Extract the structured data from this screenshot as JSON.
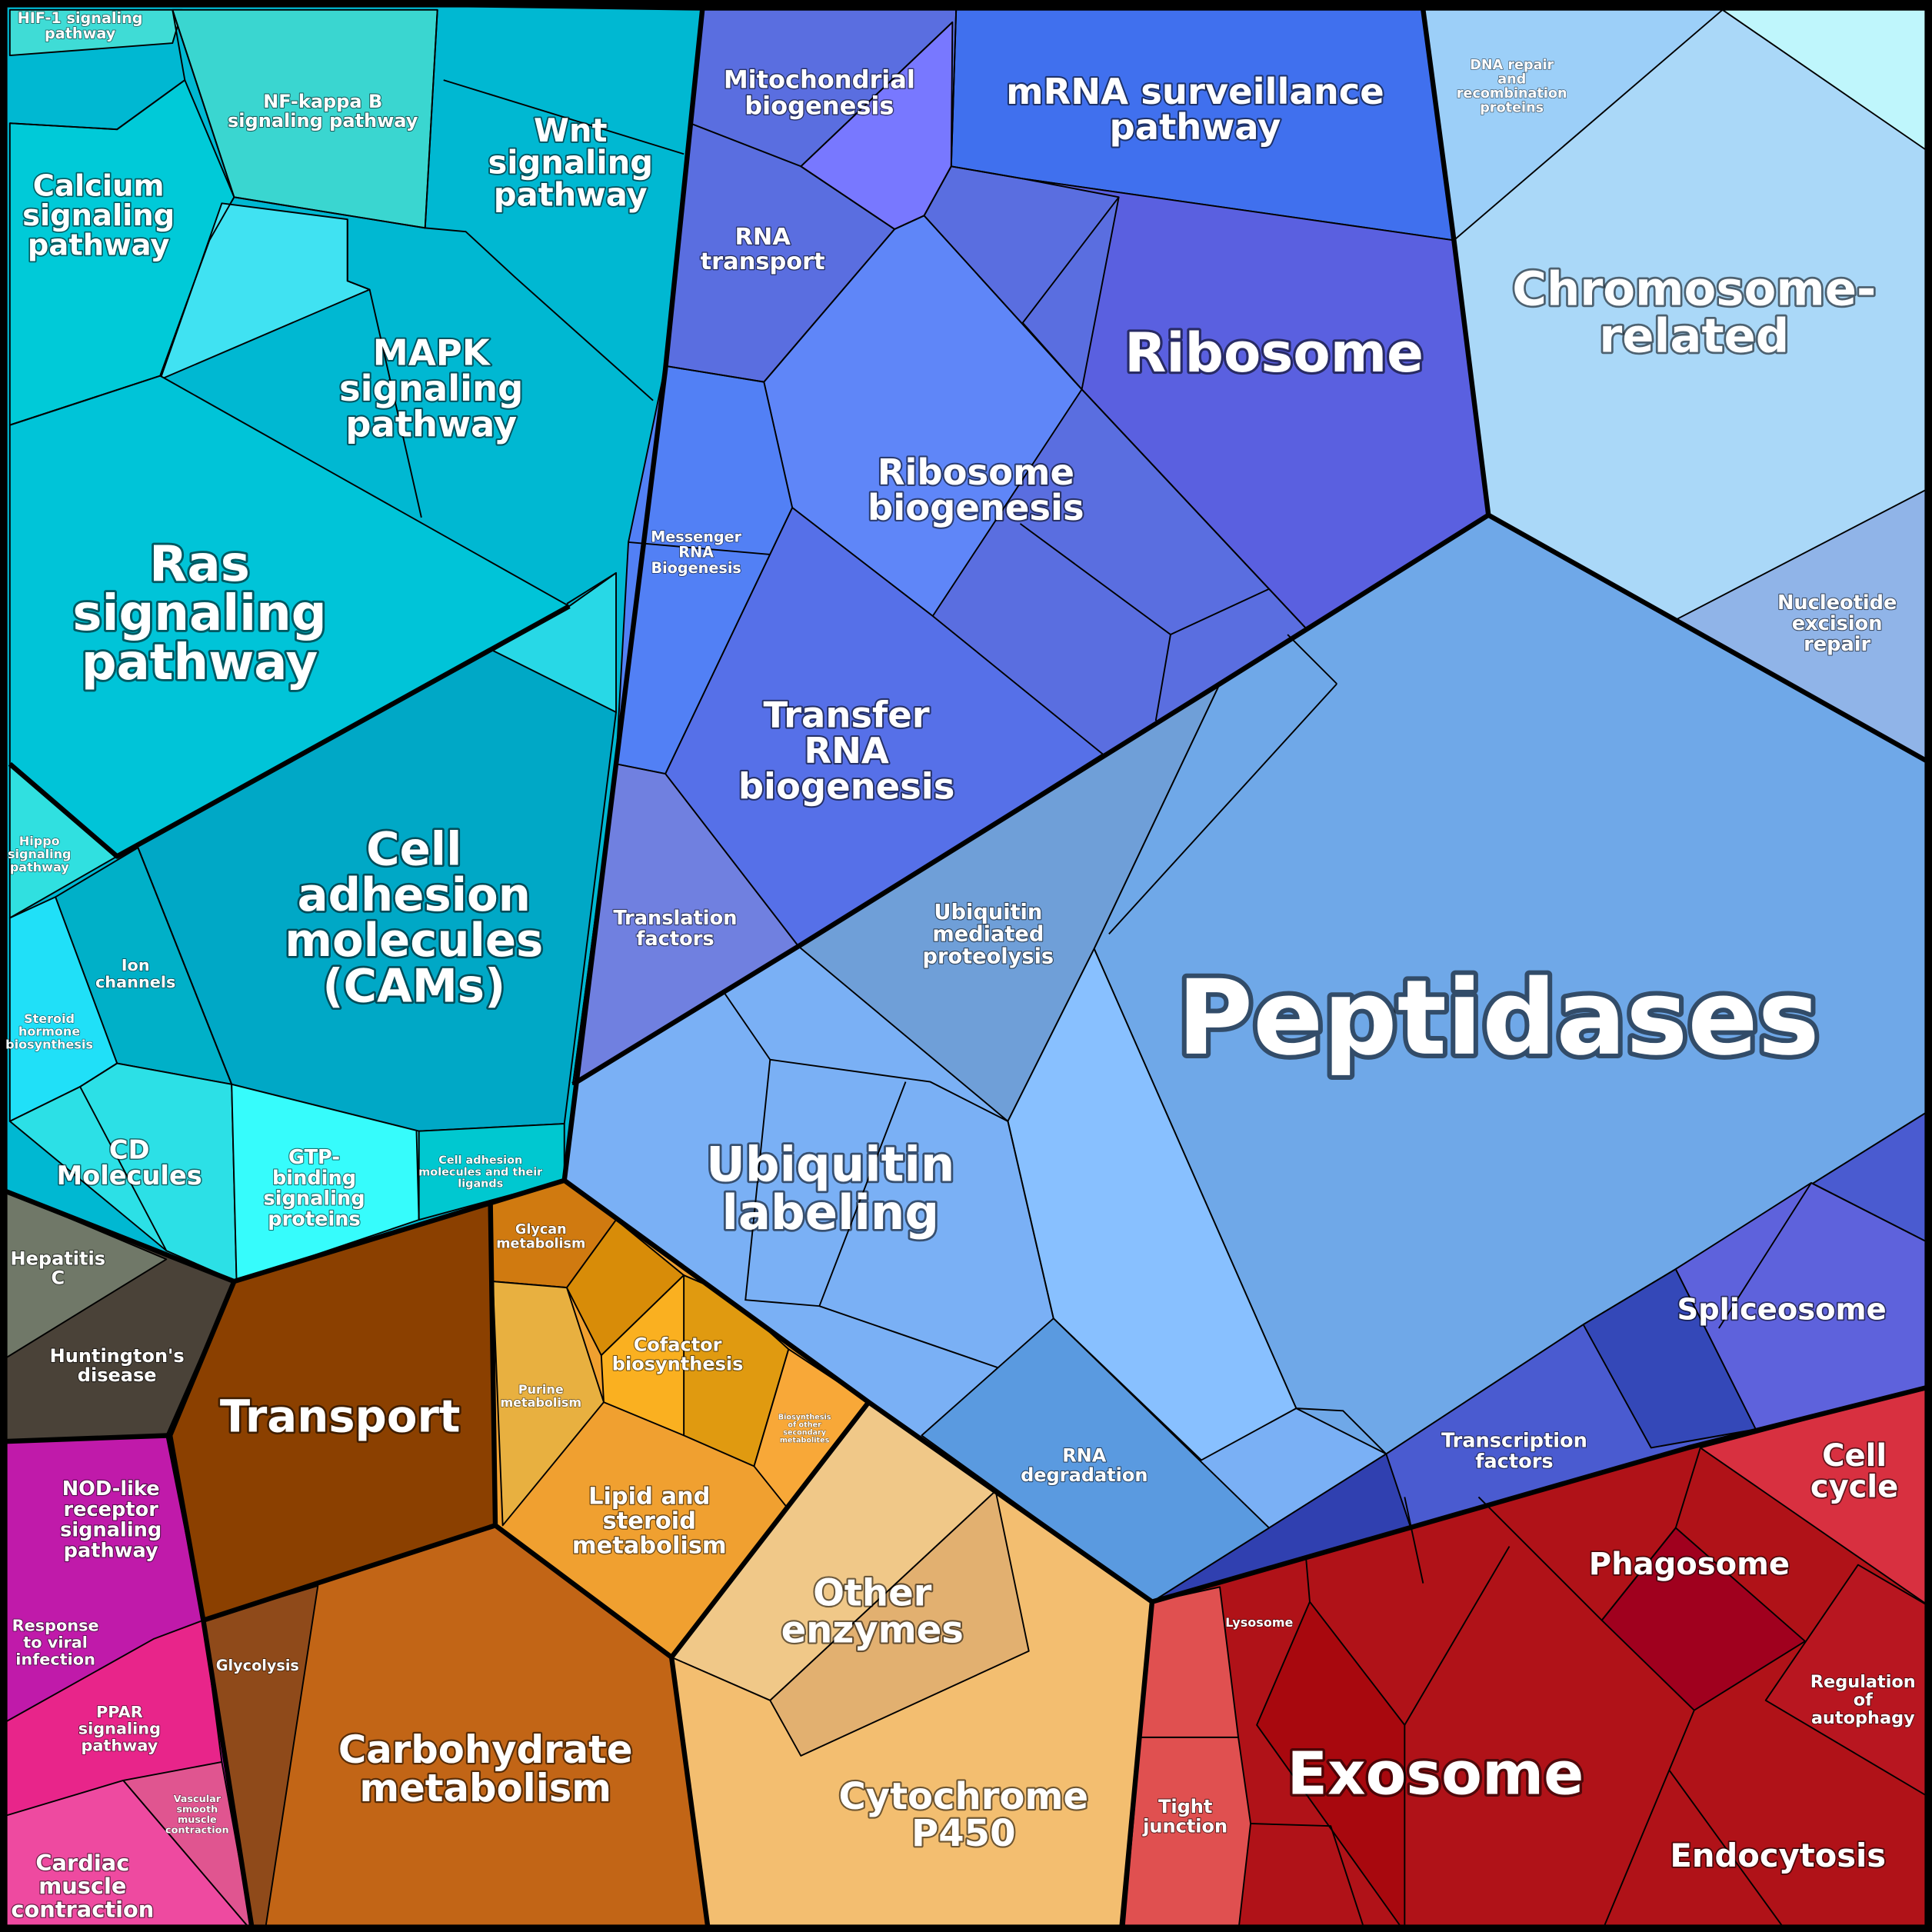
{
  "cells": [
    {
      "lines": [
        "HIF-1 signaling",
        "pathway"
      ]
    },
    {
      "lines": [
        "NF-kappa B",
        "signaling pathway"
      ]
    },
    {
      "lines": [
        "Wnt",
        "signaling",
        "pathway"
      ]
    },
    {
      "lines": [
        "Calcium",
        "signaling",
        "pathway"
      ]
    },
    {
      "lines": [
        "MAPK",
        "signaling",
        "pathway"
      ]
    },
    {
      "lines": [
        "Ras",
        "signaling",
        "pathway"
      ]
    },
    {
      "lines": [
        "Cell",
        "adhesion",
        "molecules",
        "(CAMs)"
      ]
    },
    {
      "lines": [
        "Hippo",
        "signaling",
        "pathway"
      ]
    },
    {
      "lines": [
        "Ion",
        "channels"
      ]
    },
    {
      "lines": [
        "Steroid",
        "hormone",
        "biosynthesis"
      ]
    },
    {
      "lines": [
        "CD",
        "Molecules"
      ]
    },
    {
      "lines": [
        "GTP-",
        "binding",
        "signaling",
        "proteins"
      ]
    },
    {
      "lines": [
        "Cell adhesion",
        "molecules and their",
        "ligands"
      ]
    },
    {
      "lines": [
        "Hepatitis",
        "C"
      ]
    },
    {
      "lines": [
        "Huntington's",
        "disease"
      ]
    },
    {
      "lines": [
        "NOD-like",
        "receptor",
        "signaling",
        "pathway"
      ]
    },
    {
      "lines": [
        "Response",
        "to viral",
        "infection"
      ]
    },
    {
      "lines": [
        "PPAR",
        "signaling",
        "pathway"
      ]
    },
    {
      "lines": [
        "Vascular",
        "smooth",
        "muscle",
        "contraction"
      ]
    },
    {
      "lines": [
        "Cardiac",
        "muscle",
        "contraction"
      ]
    },
    {
      "lines": [
        "Transport"
      ]
    },
    {
      "lines": [
        "Glycolysis"
      ]
    },
    {
      "lines": [
        "Carbohydrate",
        "metabolism"
      ]
    },
    {
      "lines": [
        "Glycan",
        "metabolism"
      ]
    },
    {
      "lines": [
        "Purine",
        "metabolism"
      ]
    },
    {
      "lines": [
        "Cofactor",
        "biosynthesis"
      ]
    },
    {
      "lines": [
        "Biosynthesis",
        "of other",
        "secondary",
        "metabolites"
      ]
    },
    {
      "lines": [
        "Lipid and",
        "steroid",
        "metabolism"
      ]
    },
    {
      "lines": [
        "Other",
        "enzymes"
      ]
    },
    {
      "lines": [
        "Cytochrome",
        "P450"
      ]
    },
    {
      "lines": [
        "Mitochondrial",
        "biogenesis"
      ]
    },
    {
      "lines": [
        "mRNA surveillance",
        "pathway"
      ]
    },
    {
      "lines": [
        "RNA",
        "transport"
      ]
    },
    {
      "lines": [
        "Ribosome"
      ]
    },
    {
      "lines": [
        "Ribosome",
        "biogenesis"
      ]
    },
    {
      "lines": [
        "Messenger",
        "RNA",
        "Biogenesis"
      ]
    },
    {
      "lines": [
        "Transfer",
        "RNA",
        "biogenesis"
      ]
    },
    {
      "lines": [
        "Translation",
        "factors"
      ]
    },
    {
      "lines": [
        "Ubiquitin",
        "mediated",
        "proteolysis"
      ]
    },
    {
      "lines": [
        "Ubiquitin",
        "labeling"
      ]
    },
    {
      "lines": [
        "Peptidases"
      ]
    },
    {
      "lines": [
        "RNA",
        "degradation"
      ]
    },
    {
      "lines": [
        "Chromosome-",
        "related"
      ]
    },
    {
      "lines": [
        "DNA repair",
        "and",
        "recombination",
        "proteins"
      ]
    },
    {
      "lines": [
        "Nucleotide",
        "excision",
        "repair"
      ]
    },
    {
      "lines": [
        "Spliceosome"
      ]
    },
    {
      "lines": [
        "Transcription",
        "factors"
      ]
    },
    {
      "lines": [
        "Cell",
        "cycle"
      ]
    },
    {
      "lines": [
        "Phagosome"
      ]
    },
    {
      "lines": [
        "Lysosome"
      ]
    },
    {
      "lines": [
        "Regulation",
        "of",
        "autophagy"
      ]
    },
    {
      "lines": [
        "Exosome"
      ]
    },
    {
      "lines": [
        "Tight",
        "junction"
      ]
    },
    {
      "lines": [
        "Endocytosis"
      ]
    }
  ]
}
